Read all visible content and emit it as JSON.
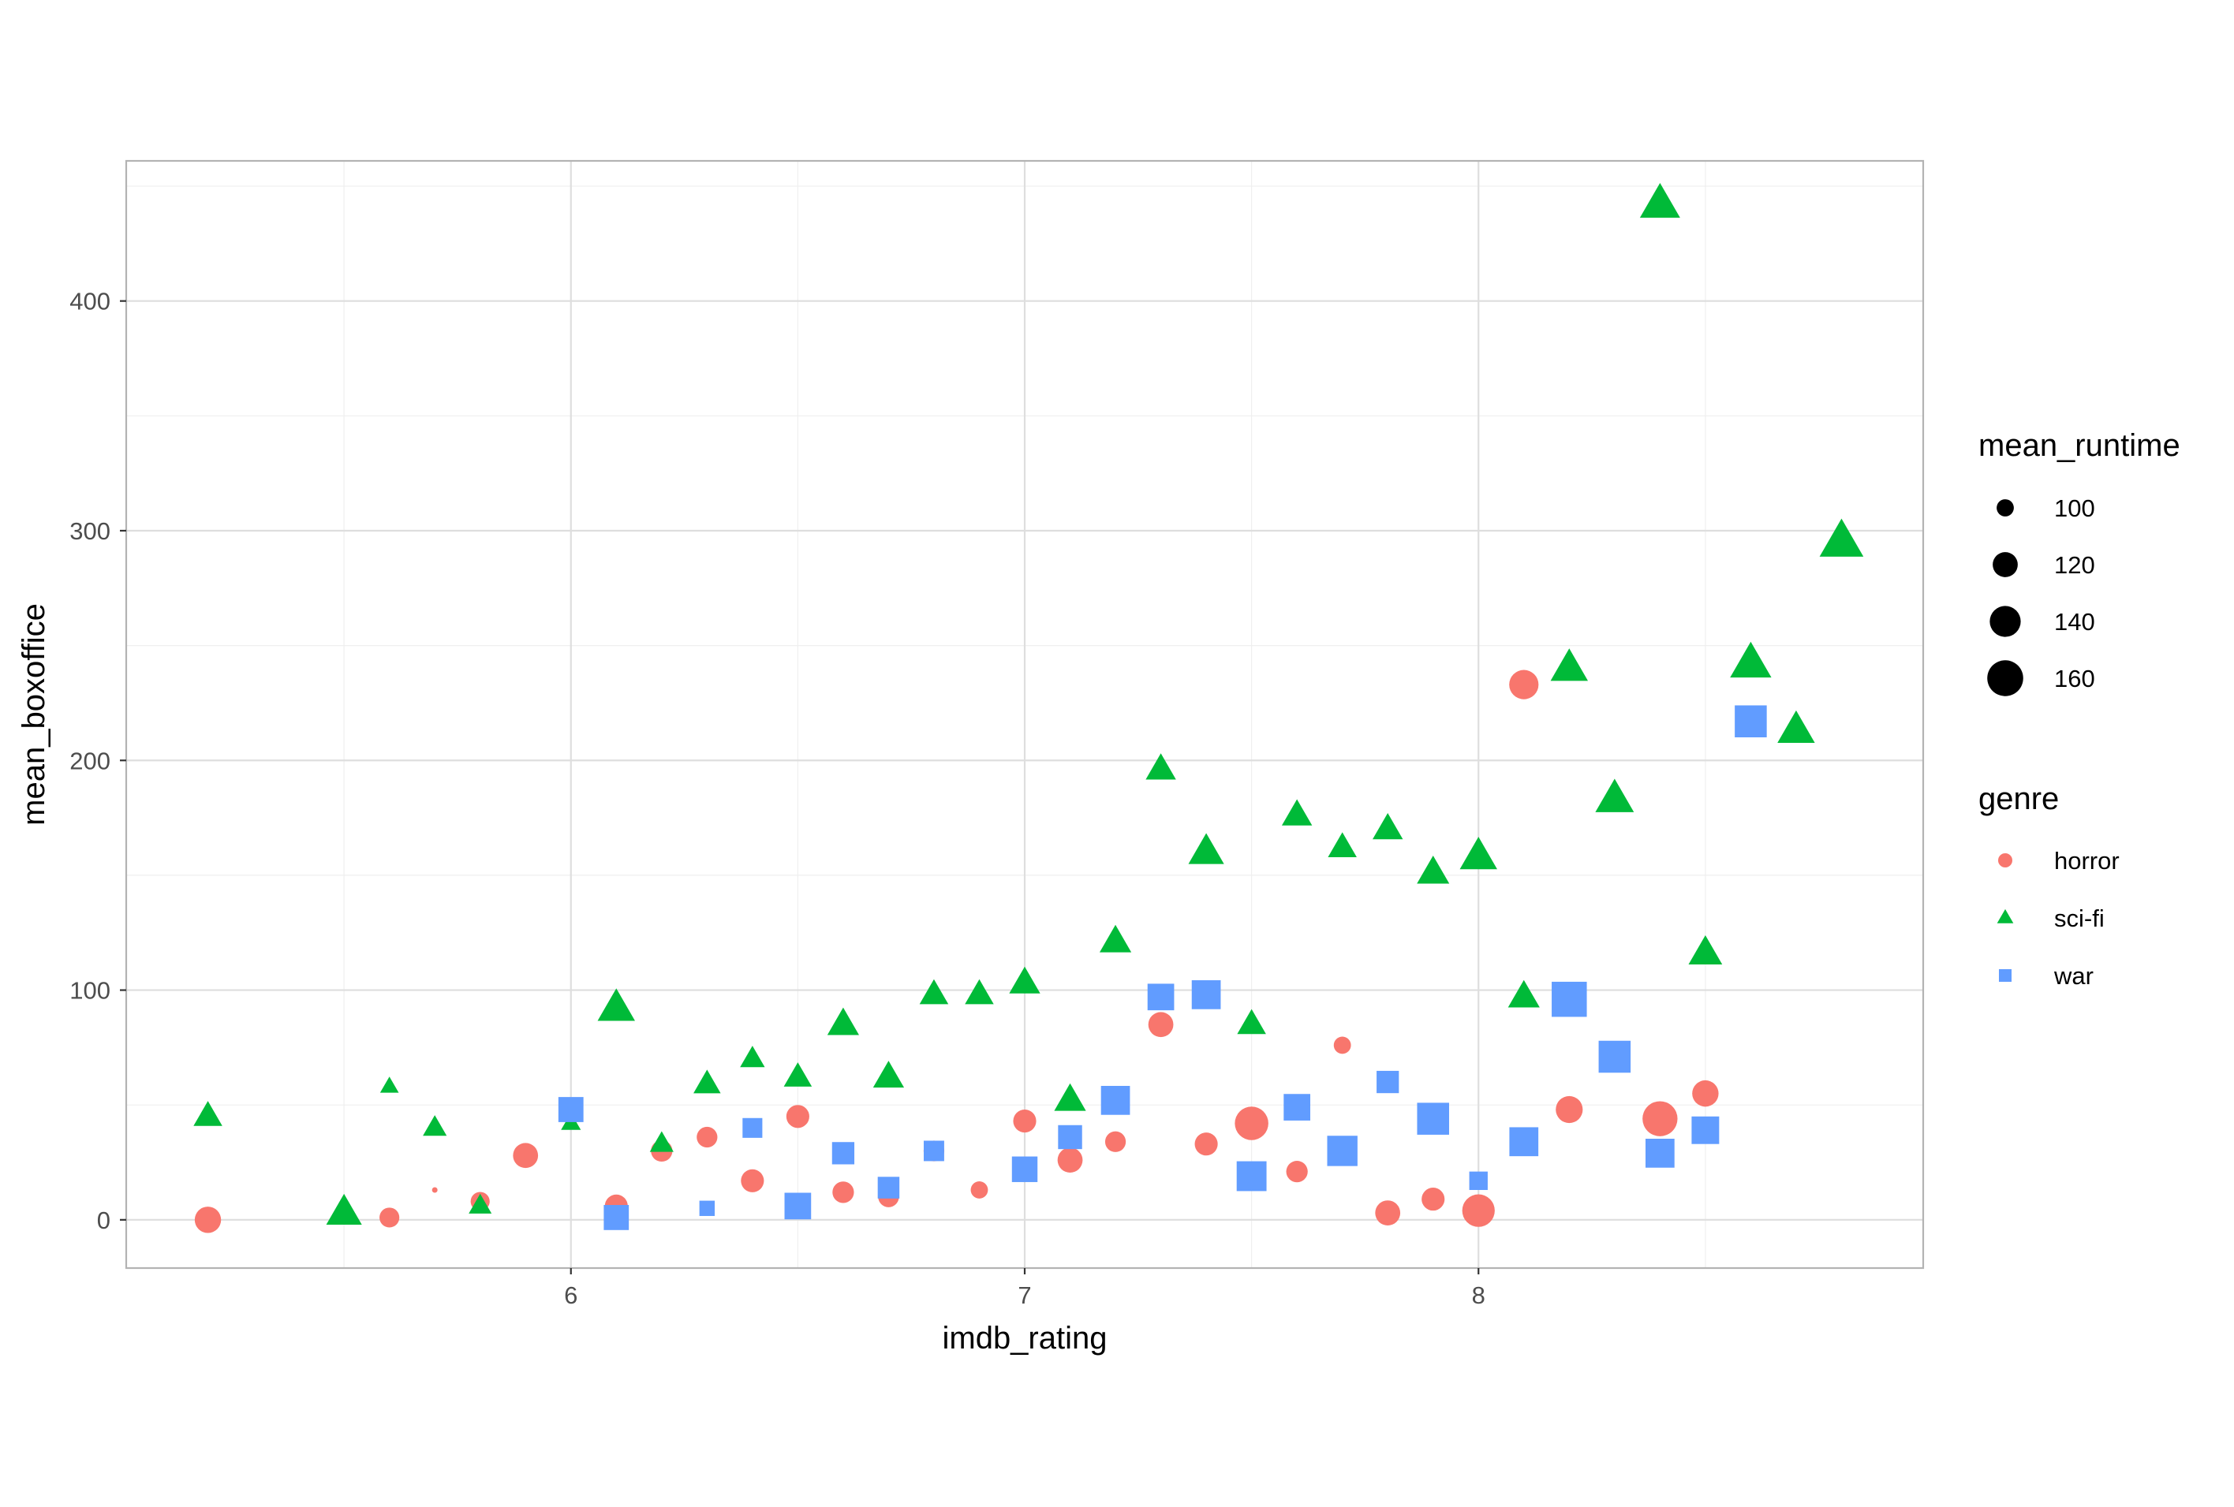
{
  "chart_data": {
    "type": "scatter",
    "xlabel": "imdb_rating",
    "ylabel": "mean_boxoffice",
    "xlim": [
      5.02,
      8.98
    ],
    "ylim": [
      -21,
      461
    ],
    "x_ticks": [
      6,
      7,
      8
    ],
    "y_ticks": [
      0,
      100,
      200,
      300,
      400
    ],
    "x_tick_labels": [
      "6",
      "7",
      "8"
    ],
    "y_tick_labels": [
      "0",
      "100",
      "200",
      "300",
      "400"
    ],
    "grid": true,
    "legend_position": "right",
    "size_legend": {
      "title": "mean_runtime",
      "values": [
        100,
        120,
        140,
        160
      ],
      "labels": [
        "100",
        "120",
        "140",
        "160"
      ]
    },
    "shape_legend": {
      "title": "genre",
      "items": [
        {
          "label": "horror",
          "shape": "circle",
          "color": "#F8766D"
        },
        {
          "label": "sci-fi",
          "shape": "triangle",
          "color": "#00BA38"
        },
        {
          "label": "war",
          "shape": "square",
          "color": "#619CFF"
        }
      ]
    },
    "series": [
      {
        "name": "horror",
        "shape": "circle",
        "color": "#F8766D",
        "points": [
          {
            "x": 5.2,
            "y": 0,
            "runtime": 124
          },
          {
            "x": 5.6,
            "y": 1,
            "runtime": 106
          },
          {
            "x": 5.7,
            "y": 13,
            "runtime": 84
          },
          {
            "x": 5.8,
            "y": 8,
            "runtime": 104
          },
          {
            "x": 5.9,
            "y": 28,
            "runtime": 120
          },
          {
            "x": 6.1,
            "y": 6,
            "runtime": 114
          },
          {
            "x": 6.2,
            "y": 30,
            "runtime": 110
          },
          {
            "x": 6.3,
            "y": 36,
            "runtime": 108
          },
          {
            "x": 6.4,
            "y": 17,
            "runtime": 114
          },
          {
            "x": 6.5,
            "y": 45,
            "runtime": 114
          },
          {
            "x": 6.6,
            "y": 12,
            "runtime": 110
          },
          {
            "x": 6.7,
            "y": 10,
            "runtime": 108
          },
          {
            "x": 6.8,
            "y": 30,
            "runtime": 108
          },
          {
            "x": 6.9,
            "y": 13,
            "runtime": 100
          },
          {
            "x": 7.0,
            "y": 43,
            "runtime": 114
          },
          {
            "x": 7.1,
            "y": 26,
            "runtime": 120
          },
          {
            "x": 7.2,
            "y": 34,
            "runtime": 108
          },
          {
            "x": 7.3,
            "y": 85,
            "runtime": 120
          },
          {
            "x": 7.4,
            "y": 33,
            "runtime": 114
          },
          {
            "x": 7.5,
            "y": 42,
            "runtime": 150
          },
          {
            "x": 7.6,
            "y": 21,
            "runtime": 110
          },
          {
            "x": 7.7,
            "y": 76,
            "runtime": 100
          },
          {
            "x": 7.8,
            "y": 3,
            "runtime": 120
          },
          {
            "x": 7.9,
            "y": 9,
            "runtime": 114
          },
          {
            "x": 8.0,
            "y": 4,
            "runtime": 146
          },
          {
            "x": 8.1,
            "y": 233,
            "runtime": 134
          },
          {
            "x": 8.2,
            "y": 48,
            "runtime": 126
          },
          {
            "x": 8.4,
            "y": 44,
            "runtime": 156
          },
          {
            "x": 8.5,
            "y": 55,
            "runtime": 124
          }
        ]
      },
      {
        "name": "sci-fi",
        "shape": "triangle",
        "color": "#00BA38",
        "points": [
          {
            "x": 5.2,
            "y": 45,
            "runtime": 120
          },
          {
            "x": 5.5,
            "y": 3,
            "runtime": 140
          },
          {
            "x": 5.6,
            "y": 58,
            "runtime": 98
          },
          {
            "x": 5.7,
            "y": 40,
            "runtime": 108
          },
          {
            "x": 5.8,
            "y": 6,
            "runtime": 106
          },
          {
            "x": 6.0,
            "y": 42,
            "runtime": 100
          },
          {
            "x": 6.1,
            "y": 92,
            "runtime": 146
          },
          {
            "x": 6.2,
            "y": 33,
            "runtime": 108
          },
          {
            "x": 6.3,
            "y": 59,
            "runtime": 116
          },
          {
            "x": 6.4,
            "y": 70,
            "runtime": 110
          },
          {
            "x": 6.5,
            "y": 62,
            "runtime": 118
          },
          {
            "x": 6.6,
            "y": 85,
            "runtime": 128
          },
          {
            "x": 6.7,
            "y": 62,
            "runtime": 126
          },
          {
            "x": 6.8,
            "y": 98,
            "runtime": 120
          },
          {
            "x": 6.9,
            "y": 98,
            "runtime": 120
          },
          {
            "x": 7.0,
            "y": 103,
            "runtime": 126
          },
          {
            "x": 7.1,
            "y": 52,
            "runtime": 128
          },
          {
            "x": 7.2,
            "y": 121,
            "runtime": 128
          },
          {
            "x": 7.3,
            "y": 196,
            "runtime": 124
          },
          {
            "x": 7.4,
            "y": 160,
            "runtime": 140
          },
          {
            "x": 7.5,
            "y": 85,
            "runtime": 120
          },
          {
            "x": 7.6,
            "y": 176,
            "runtime": 124
          },
          {
            "x": 7.7,
            "y": 162,
            "runtime": 120
          },
          {
            "x": 7.8,
            "y": 170,
            "runtime": 124
          },
          {
            "x": 7.9,
            "y": 151,
            "runtime": 130
          },
          {
            "x": 8.0,
            "y": 158,
            "runtime": 146
          },
          {
            "x": 8.1,
            "y": 97,
            "runtime": 128
          },
          {
            "x": 8.2,
            "y": 240,
            "runtime": 146
          },
          {
            "x": 8.3,
            "y": 183,
            "runtime": 150
          },
          {
            "x": 8.4,
            "y": 442,
            "runtime": 156
          },
          {
            "x": 8.5,
            "y": 116,
            "runtime": 134
          },
          {
            "x": 8.6,
            "y": 242,
            "runtime": 160
          },
          {
            "x": 8.7,
            "y": 213,
            "runtime": 146
          },
          {
            "x": 8.8,
            "y": 295,
            "runtime": 170
          }
        ]
      },
      {
        "name": "war",
        "shape": "square",
        "color": "#619CFF",
        "points": [
          {
            "x": 6.0,
            "y": 48,
            "runtime": 130
          },
          {
            "x": 6.1,
            "y": 1,
            "runtime": 130
          },
          {
            "x": 6.3,
            "y": 5,
            "runtime": 100
          },
          {
            "x": 6.4,
            "y": 40,
            "runtime": 112
          },
          {
            "x": 6.5,
            "y": 6,
            "runtime": 136
          },
          {
            "x": 6.6,
            "y": 29,
            "runtime": 120
          },
          {
            "x": 6.7,
            "y": 14,
            "runtime": 118
          },
          {
            "x": 6.8,
            "y": 30,
            "runtime": 114
          },
          {
            "x": 7.0,
            "y": 22,
            "runtime": 132
          },
          {
            "x": 7.1,
            "y": 36,
            "runtime": 126
          },
          {
            "x": 7.2,
            "y": 52,
            "runtime": 146
          },
          {
            "x": 7.3,
            "y": 97,
            "runtime": 136
          },
          {
            "x": 7.4,
            "y": 98,
            "runtime": 146
          },
          {
            "x": 7.5,
            "y": 19,
            "runtime": 150
          },
          {
            "x": 7.6,
            "y": 49,
            "runtime": 136
          },
          {
            "x": 7.7,
            "y": 30,
            "runtime": 152
          },
          {
            "x": 7.8,
            "y": 60,
            "runtime": 120
          },
          {
            "x": 7.9,
            "y": 44,
            "runtime": 160
          },
          {
            "x": 8.0,
            "y": 17,
            "runtime": 108
          },
          {
            "x": 8.1,
            "y": 34,
            "runtime": 146
          },
          {
            "x": 8.2,
            "y": 96,
            "runtime": 176
          },
          {
            "x": 8.3,
            "y": 71,
            "runtime": 160
          },
          {
            "x": 8.4,
            "y": 29,
            "runtime": 146
          },
          {
            "x": 8.5,
            "y": 39,
            "runtime": 140
          },
          {
            "x": 8.6,
            "y": 217,
            "runtime": 160
          }
        ]
      }
    ]
  }
}
